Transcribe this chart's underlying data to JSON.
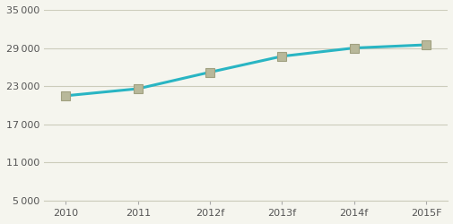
{
  "x_labels": [
    "2010",
    "2011",
    "2012f",
    "2013f",
    "2014f",
    "2015F"
  ],
  "x_values": [
    0,
    1,
    2,
    3,
    4,
    5
  ],
  "y_values": [
    21500,
    22600,
    25200,
    27700,
    29000,
    29500
  ],
  "line_color": "#29B5C3",
  "marker_color": "#B8B89A",
  "marker_edge_color": "#A0A080",
  "y_ticks": [
    5000,
    11000,
    17000,
    23000,
    29000,
    35000
  ],
  "y_lim": [
    5000,
    35000
  ],
  "background_color": "#F5F5EE",
  "grid_color": "#CCCCBB",
  "tick_label_color": "#555555",
  "axis_color": "#AAAAAA"
}
